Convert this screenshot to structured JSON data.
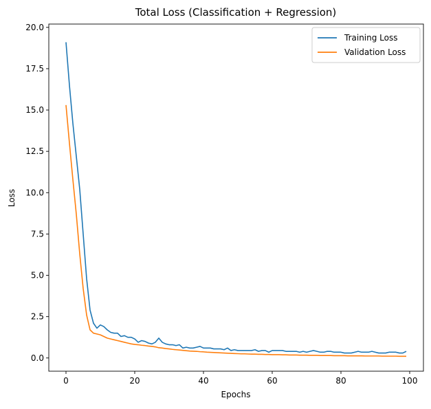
{
  "chart_data": {
    "type": "line",
    "title": "Total Loss (Classification + Regression)",
    "xlabel": "Epochs",
    "ylabel": "Loss",
    "xlim": [
      -5,
      104
    ],
    "ylim": [
      -0.8,
      20.2
    ],
    "xticks": [
      0,
      20,
      40,
      60,
      80,
      100
    ],
    "xtick_labels": [
      "0",
      "20",
      "40",
      "60",
      "80",
      "100"
    ],
    "yticks": [
      0.0,
      2.5,
      5.0,
      7.5,
      10.0,
      12.5,
      15.0,
      17.5,
      20.0
    ],
    "ytick_labels": [
      "0.0",
      "2.5",
      "5.0",
      "7.5",
      "10.0",
      "12.5",
      "15.0",
      "17.5",
      "20.0"
    ],
    "grid": false,
    "legend_position": "top-right",
    "series": [
      {
        "name": "Training Loss",
        "color": "#1f77b4",
        "x_start": 0,
        "values": [
          19.1,
          16.5,
          14.2,
          12.2,
          10.2,
          7.5,
          4.8,
          2.9,
          2.1,
          1.8,
          2.0,
          1.9,
          1.7,
          1.55,
          1.5,
          1.5,
          1.3,
          1.35,
          1.25,
          1.25,
          1.15,
          0.95,
          1.05,
          1.0,
          0.9,
          0.85,
          0.95,
          1.2,
          0.95,
          0.85,
          0.8,
          0.8,
          0.75,
          0.8,
          0.6,
          0.65,
          0.6,
          0.6,
          0.65,
          0.7,
          0.6,
          0.6,
          0.6,
          0.55,
          0.55,
          0.55,
          0.5,
          0.6,
          0.45,
          0.5,
          0.45,
          0.45,
          0.45,
          0.45,
          0.45,
          0.5,
          0.4,
          0.45,
          0.45,
          0.35,
          0.45,
          0.45,
          0.45,
          0.45,
          0.4,
          0.4,
          0.4,
          0.4,
          0.35,
          0.4,
          0.35,
          0.4,
          0.45,
          0.4,
          0.35,
          0.35,
          0.4,
          0.4,
          0.35,
          0.35,
          0.35,
          0.3,
          0.3,
          0.3,
          0.35,
          0.4,
          0.35,
          0.35,
          0.35,
          0.4,
          0.35,
          0.3,
          0.3,
          0.3,
          0.35,
          0.35,
          0.35,
          0.3,
          0.3,
          0.4
        ]
      },
      {
        "name": "Validation Loss",
        "color": "#ff7f0e",
        "x_start": 0,
        "values": [
          15.3,
          13.0,
          10.8,
          8.7,
          6.3,
          4.2,
          2.6,
          1.7,
          1.5,
          1.45,
          1.4,
          1.3,
          1.2,
          1.15,
          1.1,
          1.05,
          1.0,
          0.95,
          0.9,
          0.85,
          0.82,
          0.8,
          0.77,
          0.75,
          0.72,
          0.7,
          0.67,
          0.62,
          0.6,
          0.57,
          0.55,
          0.52,
          0.5,
          0.48,
          0.46,
          0.44,
          0.42,
          0.41,
          0.4,
          0.38,
          0.37,
          0.35,
          0.34,
          0.33,
          0.32,
          0.31,
          0.3,
          0.29,
          0.28,
          0.27,
          0.26,
          0.25,
          0.25,
          0.24,
          0.23,
          0.23,
          0.22,
          0.22,
          0.21,
          0.21,
          0.2,
          0.2,
          0.2,
          0.19,
          0.19,
          0.18,
          0.18,
          0.18,
          0.17,
          0.17,
          0.17,
          0.16,
          0.16,
          0.16,
          0.15,
          0.15,
          0.15,
          0.15,
          0.14,
          0.14,
          0.14,
          0.14,
          0.13,
          0.13,
          0.13,
          0.13,
          0.13,
          0.12,
          0.12,
          0.12,
          0.12,
          0.12,
          0.11,
          0.11,
          0.11,
          0.11,
          0.11,
          0.1,
          0.1,
          0.1
        ]
      }
    ]
  }
}
